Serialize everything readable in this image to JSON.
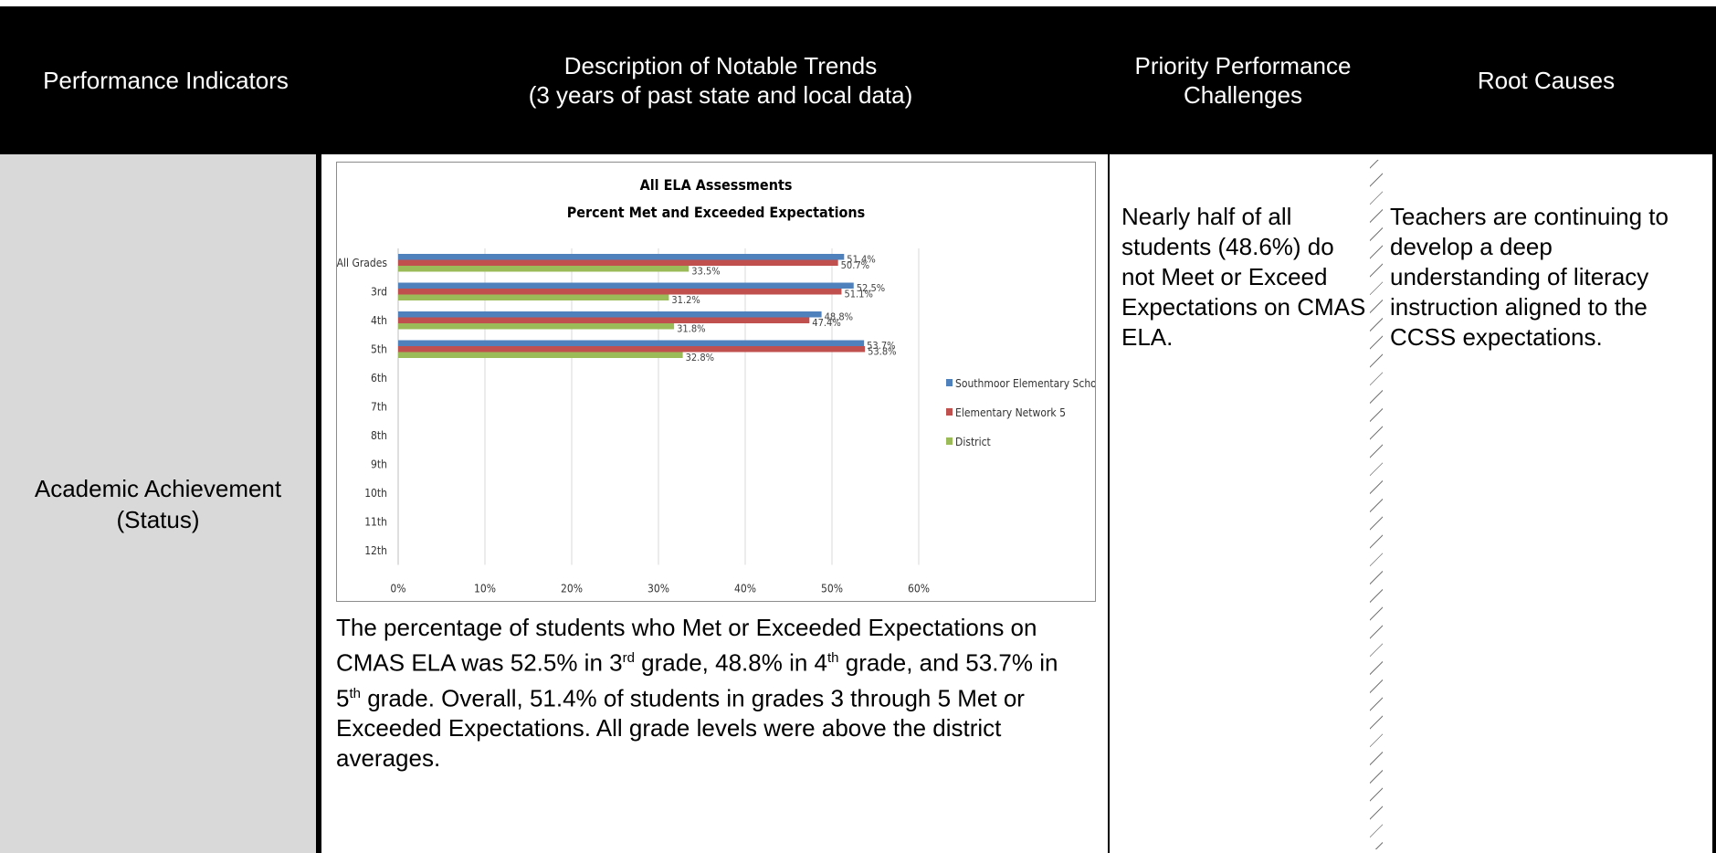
{
  "header": {
    "col1": "Performance Indicators",
    "col2": "Description of Notable Trends\n(3 years of past state and local data)",
    "col3": "Priority Performance\nChallenges",
    "col4": "Root Causes"
  },
  "row": {
    "indicator": "Academic Achievement\n(Status)",
    "trend_parts": {
      "p1": "The percentage of students who Met or Exceeded Expectations on CMAS ELA was 52.5% in 3",
      "sup1": "rd",
      "p2": " grade, 48.8% in 4",
      "sup2": "th",
      "p3": " grade, and 53.7% in 5",
      "sup3": "th",
      "p4": " grade. Overall, 51.4% of students in grades 3 through 5 Met or Exceeded Expectations.  All grade levels were above the district averages."
    },
    "challenge": "Nearly half of all students (48.6%) do not Meet or Exceed Expectations on CMAS ELA.",
    "root_cause": "Teachers are continuing to develop a deep understanding of literacy instruction aligned to the CCSS expectations."
  },
  "chart_data": {
    "type": "bar",
    "orientation": "horizontal",
    "title": "All ELA Assessments",
    "subtitle": "Percent Met and Exceeded Expectations",
    "categories": [
      "All Grades",
      "3rd",
      "4th",
      "5th",
      "6th",
      "7th",
      "8th",
      "9th",
      "10th",
      "11th",
      "12th"
    ],
    "series": [
      {
        "name": "Southmoor Elementary School",
        "color": "#4f81bd",
        "values": [
          51.4,
          52.5,
          48.8,
          53.7,
          null,
          null,
          null,
          null,
          null,
          null,
          null
        ],
        "labels": [
          "51.4%",
          "52.5%",
          "48.8%",
          "53.7%",
          "",
          "",
          "",
          "",
          "",
          "",
          ""
        ]
      },
      {
        "name": "Elementary Network 5",
        "color": "#c0504d",
        "values": [
          50.7,
          51.1,
          47.4,
          53.8,
          null,
          null,
          null,
          null,
          null,
          null,
          null
        ],
        "labels": [
          "50.7%",
          "51.1%",
          "47.4%",
          "53.8%",
          "",
          "",
          "",
          "",
          "",
          "",
          ""
        ]
      },
      {
        "name": "District",
        "color": "#9bbb59",
        "values": [
          33.5,
          31.2,
          31.8,
          32.8,
          null,
          null,
          null,
          null,
          null,
          null,
          null
        ],
        "labels": [
          "33.5%",
          "31.2%",
          "31.8%",
          "32.8%",
          "",
          "",
          "",
          "",
          "",
          "",
          ""
        ]
      }
    ],
    "xlim": [
      0,
      60
    ],
    "xticks": [
      "0%",
      "10%",
      "20%",
      "30%",
      "40%",
      "50%",
      "60%"
    ],
    "grid": true,
    "legend_position": "right"
  }
}
